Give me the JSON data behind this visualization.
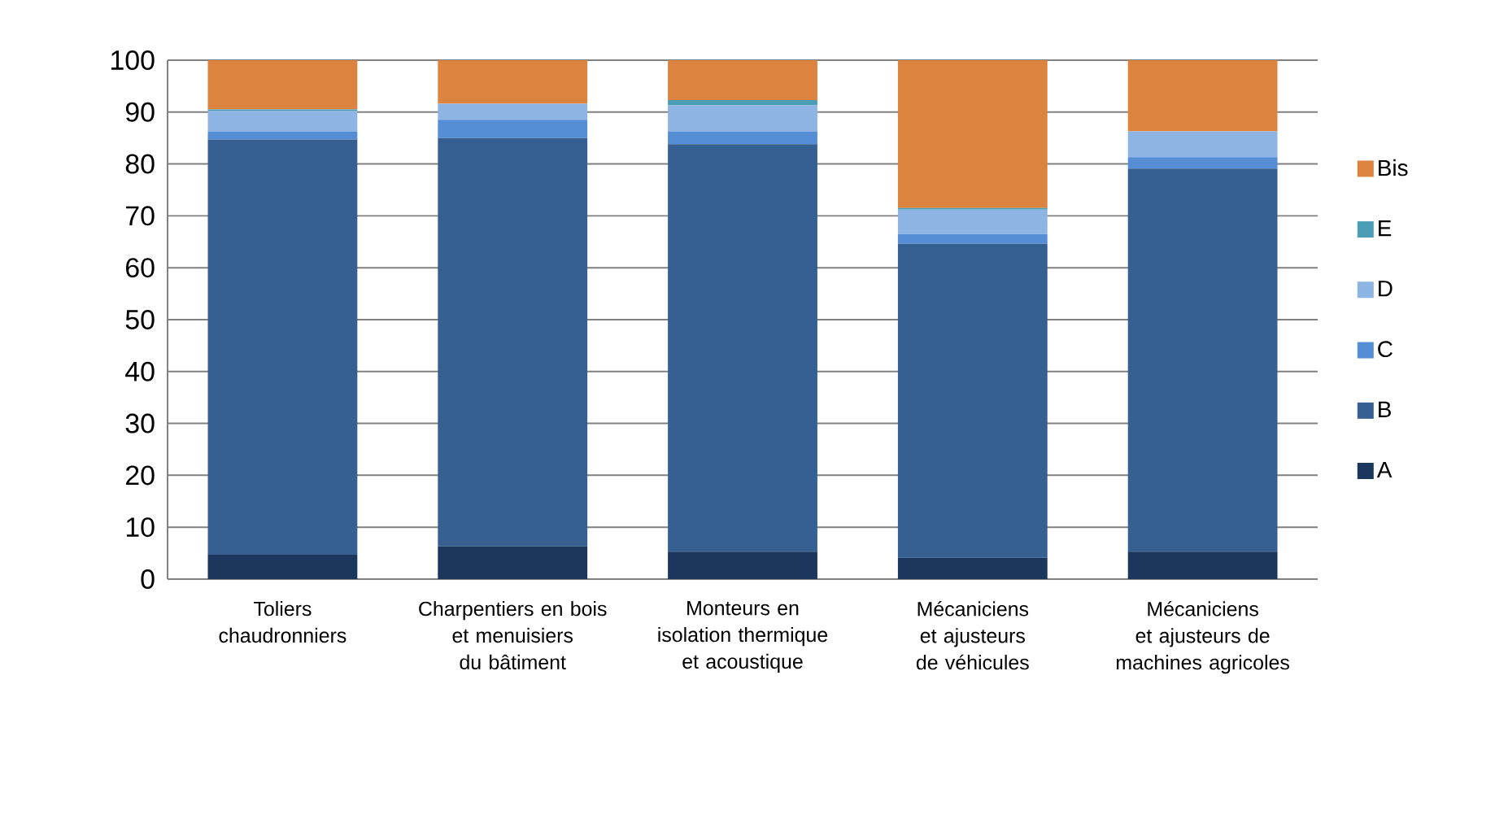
{
  "chart_data": {
    "type": "bar",
    "stacked": true,
    "categories": [
      "Toliers chaudronniers",
      "Charpentiers en bois et menuisiers du bâtiment",
      "Monteurs en isolation thermique et acoustique",
      "Mécaniciens et ajusteurs de véhicules",
      "Mécaniciens et ajusteurs de machines agricoles"
    ],
    "series": [
      {
        "name": "A",
        "color": "#1b375e",
        "values": [
          4.7,
          6.3,
          5.3,
          4.1,
          5.3
        ]
      },
      {
        "name": "B",
        "color": "#366092",
        "values": [
          80.0,
          78.7,
          78.5,
          60.5,
          73.8
        ]
      },
      {
        "name": "C",
        "color": "#558ed5",
        "values": [
          1.6,
          3.5,
          2.5,
          1.9,
          2.2
        ]
      },
      {
        "name": "D",
        "color": "#8eb4e3",
        "values": [
          3.9,
          3.1,
          5.0,
          4.7,
          5.0
        ]
      },
      {
        "name": "E",
        "color": "#4a9db4",
        "values": [
          0.3,
          0,
          1.0,
          0.3,
          0
        ]
      },
      {
        "name": "Bis",
        "color": "#dc843f",
        "values": [
          9.5,
          8.4,
          7.7,
          28.5,
          13.7
        ]
      }
    ],
    "ylim": [
      0,
      100
    ],
    "yticks": [
      0,
      10,
      20,
      30,
      40,
      50,
      60,
      70,
      80,
      90,
      100
    ],
    "grid": "y",
    "legend": "right"
  }
}
